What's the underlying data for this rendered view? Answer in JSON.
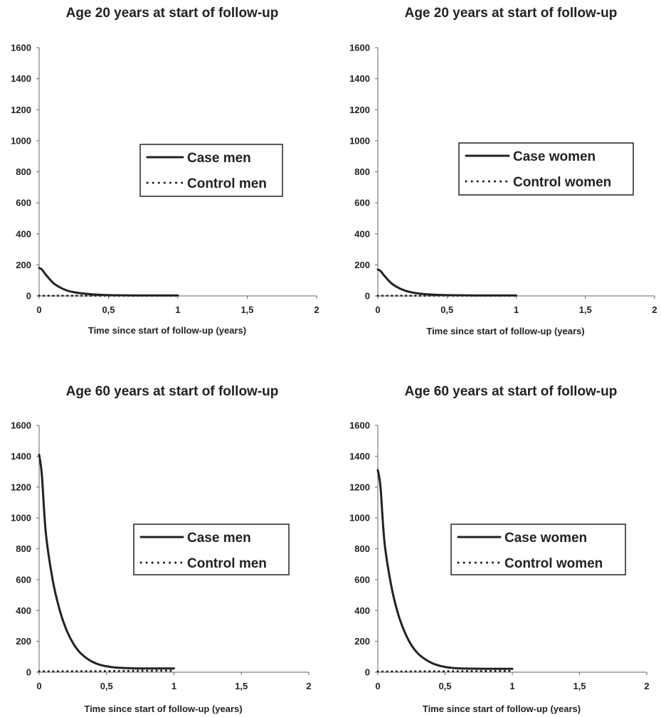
{
  "chart_data": [
    {
      "type": "line",
      "title": "Age 20 years at start of follow-up",
      "xlabel": "Time since start of follow-up (years)",
      "ylabel": "",
      "xlim": [
        0,
        2
      ],
      "ylim": [
        0,
        1600
      ],
      "x_ticks": [
        0,
        0.5,
        1,
        1.5,
        2
      ],
      "x_tick_labels": [
        "0",
        "0,5",
        "1",
        "1,5",
        "2"
      ],
      "y_ticks": [
        0,
        200,
        400,
        600,
        800,
        1000,
        1200,
        1400,
        1600
      ],
      "y_tick_labels": [
        "0",
        "200",
        "400",
        "600",
        "800",
        "1000",
        "1200",
        "1400",
        "1600"
      ],
      "grid": false,
      "legend_position": "center-right",
      "series": [
        {
          "name": "Case men",
          "style": "solid",
          "color": "#222222",
          "x": [
            0,
            0.02,
            0.05,
            0.1,
            0.15,
            0.2,
            0.25,
            0.3,
            0.4,
            0.5,
            0.6,
            0.7,
            0.8,
            0.9,
            1.0
          ],
          "y": [
            180,
            170,
            135,
            85,
            55,
            35,
            24,
            17,
            9,
            5,
            4,
            3,
            3,
            3,
            3
          ]
        },
        {
          "name": "Control men",
          "style": "dotted",
          "color": "#222222",
          "x": [
            0,
            0.25,
            0.5,
            0.75,
            1.0
          ],
          "y": [
            1,
            1,
            1,
            1,
            1
          ]
        }
      ]
    },
    {
      "type": "line",
      "title": "Age 20 years at start of follow-up",
      "xlabel": "Time since start of follow-up (years)",
      "ylabel": "",
      "xlim": [
        0,
        2
      ],
      "ylim": [
        0,
        1600
      ],
      "x_ticks": [
        0,
        0.5,
        1,
        1.5,
        2
      ],
      "x_tick_labels": [
        "0",
        "0,5",
        "1",
        "1,5",
        "2"
      ],
      "y_ticks": [
        0,
        200,
        400,
        600,
        800,
        1000,
        1200,
        1400,
        1600
      ],
      "y_tick_labels": [
        "0",
        "200",
        "400",
        "600",
        "800",
        "1000",
        "1200",
        "1400",
        "1600"
      ],
      "grid": false,
      "legend_position": "center-right",
      "series": [
        {
          "name": "Case women",
          "style": "solid",
          "color": "#222222",
          "x": [
            0,
            0.02,
            0.05,
            0.1,
            0.15,
            0.2,
            0.25,
            0.3,
            0.4,
            0.5,
            0.6,
            0.7,
            0.8,
            0.9,
            1.0
          ],
          "y": [
            170,
            160,
            127,
            80,
            52,
            33,
            22,
            15,
            8,
            5,
            4,
            3,
            3,
            3,
            3
          ]
        },
        {
          "name": "Control women",
          "style": "dotted",
          "color": "#222222",
          "x": [
            0,
            0.25,
            0.5,
            0.75,
            1.0
          ],
          "y": [
            1,
            1,
            1,
            1,
            1
          ]
        }
      ]
    },
    {
      "type": "line",
      "title": "Age 60 years at start of follow-up",
      "xlabel": "Time since start of follow-up (years)",
      "ylabel": "",
      "xlim": [
        0,
        2
      ],
      "ylim": [
        0,
        1600
      ],
      "x_ticks": [
        0,
        0.5,
        1,
        1.5,
        2
      ],
      "x_tick_labels": [
        "0",
        "0,5",
        "1",
        "1,5",
        "2"
      ],
      "y_ticks": [
        0,
        200,
        400,
        600,
        800,
        1000,
        1200,
        1400,
        1600
      ],
      "y_tick_labels": [
        "0",
        "200",
        "400",
        "600",
        "800",
        "1000",
        "1200",
        "1400",
        "1600"
      ],
      "grid": false,
      "legend_position": "center-right",
      "series": [
        {
          "name": "Case men",
          "style": "solid",
          "color": "#222222",
          "x": [
            0,
            0.02,
            0.05,
            0.1,
            0.15,
            0.2,
            0.25,
            0.3,
            0.35,
            0.4,
            0.45,
            0.5,
            0.55,
            0.6,
            0.7,
            0.8,
            0.9,
            1.0
          ],
          "y": [
            1410,
            1280,
            900,
            600,
            410,
            280,
            190,
            130,
            92,
            65,
            48,
            38,
            32,
            28,
            25,
            24,
            24,
            24
          ]
        },
        {
          "name": "Control men",
          "style": "dotted",
          "color": "#222222",
          "x": [
            0,
            0.25,
            0.5,
            0.75,
            1.0
          ],
          "y": [
            5,
            6,
            7,
            9,
            10
          ]
        }
      ]
    },
    {
      "type": "line",
      "title": "Age 60 years at start of follow-up",
      "xlabel": "Time since start of follow-up (years)",
      "ylabel": "",
      "xlim": [
        0,
        2
      ],
      "ylim": [
        0,
        1600
      ],
      "x_ticks": [
        0,
        0.5,
        1,
        1.5,
        2
      ],
      "x_tick_labels": [
        "0",
        "0,5",
        "1",
        "1,5",
        "2"
      ],
      "y_ticks": [
        0,
        200,
        400,
        600,
        800,
        1000,
        1200,
        1400,
        1600
      ],
      "y_tick_labels": [
        "0",
        "200",
        "400",
        "600",
        "800",
        "1000",
        "1200",
        "1400",
        "1600"
      ],
      "grid": false,
      "legend_position": "center-right",
      "series": [
        {
          "name": "Case women",
          "style": "solid",
          "color": "#222222",
          "x": [
            0,
            0.02,
            0.05,
            0.1,
            0.15,
            0.2,
            0.25,
            0.3,
            0.35,
            0.4,
            0.45,
            0.5,
            0.55,
            0.6,
            0.7,
            0.8,
            0.9,
            1.0
          ],
          "y": [
            1310,
            1200,
            840,
            560,
            380,
            260,
            175,
            120,
            85,
            60,
            44,
            34,
            28,
            25,
            23,
            22,
            22,
            22
          ]
        },
        {
          "name": "Control women",
          "style": "dotted",
          "color": "#222222",
          "x": [
            0,
            0.25,
            0.5,
            0.75,
            1.0
          ],
          "y": [
            4,
            5,
            6,
            7,
            8
          ]
        }
      ]
    }
  ]
}
